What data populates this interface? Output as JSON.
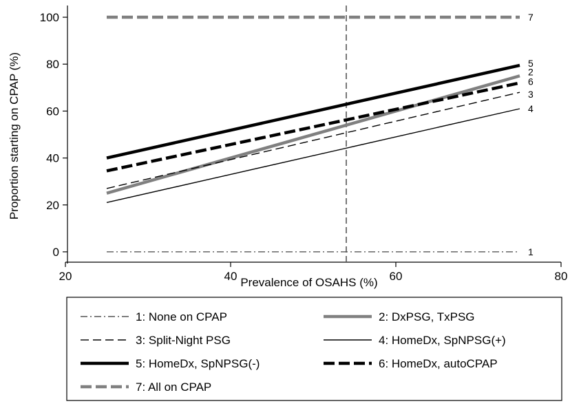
{
  "chart_data": {
    "type": "line",
    "xlabel": "Prevalence of OSAHS (%)",
    "ylabel": "Proportion starting on CPAP (%)",
    "xlim": [
      20,
      80
    ],
    "ylim": [
      -5,
      105
    ],
    "x_ticks": [
      20,
      40,
      60,
      80
    ],
    "y_ticks": [
      0,
      20,
      40,
      60,
      80,
      100
    ],
    "grid": false,
    "legend_position": "bottom",
    "reference_line": {
      "axis": "x",
      "value": 54,
      "style": "dashed",
      "color": "#555555"
    },
    "series": [
      {
        "name": "1: None on CPAP",
        "label": "1",
        "x": [
          25,
          75
        ],
        "y": [
          0,
          0
        ],
        "color": "#555555",
        "style": "dashdot",
        "width": "thin"
      },
      {
        "name": "2: DxPSG, TxPSG",
        "label": "2",
        "x": [
          25,
          75
        ],
        "y": [
          25,
          75
        ],
        "color": "#808080",
        "style": "solid",
        "width": "thick"
      },
      {
        "name": "3: Split-Night PSG",
        "label": "3",
        "x": [
          25,
          75
        ],
        "y": [
          27,
          68
        ],
        "color": "#000000",
        "style": "dashed",
        "width": "thin"
      },
      {
        "name": "4: HomeDx, SpNPSG(+)",
        "label": "4",
        "x": [
          25,
          75
        ],
        "y": [
          21,
          61
        ],
        "color": "#000000",
        "style": "solid",
        "width": "thin"
      },
      {
        "name": "5: HomeDx, SpNPSG(-)",
        "label": "5",
        "x": [
          25,
          75
        ],
        "y": [
          40,
          79.5
        ],
        "color": "#000000",
        "style": "solid",
        "width": "thick"
      },
      {
        "name": "6: HomeDx, autoCPAP",
        "label": "6",
        "x": [
          25,
          75
        ],
        "y": [
          34.5,
          72
        ],
        "color": "#000000",
        "style": "longdash",
        "width": "thick"
      },
      {
        "name": "7: All on CPAP",
        "label": "7",
        "x": [
          25,
          75
        ],
        "y": [
          100,
          100
        ],
        "color": "#808080",
        "style": "longdash",
        "width": "thick"
      }
    ]
  }
}
